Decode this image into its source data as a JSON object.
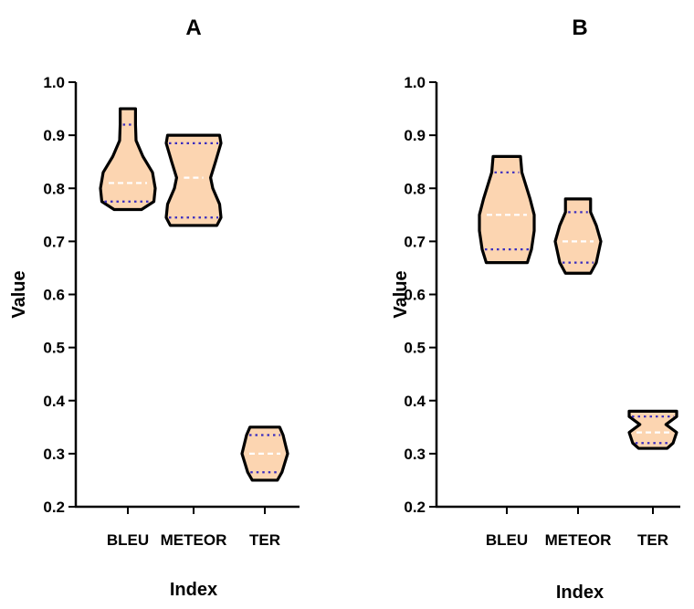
{
  "chart_data": [
    {
      "type": "violin",
      "panel_label": "A",
      "xlabel": "Index",
      "ylabel": "Value",
      "ylim": [
        0.2,
        1.0
      ],
      "yticks": [
        "0.2",
        "0.3",
        "0.4",
        "0.5",
        "0.6",
        "0.7",
        "0.8",
        "0.9",
        "1.0"
      ],
      "categories": [
        "BLEU",
        "METEOR",
        "TER"
      ],
      "violins": [
        {
          "category": "BLEU",
          "min": 0.76,
          "max": 0.95,
          "q1": 0.775,
          "median": 0.81,
          "q3": 0.92,
          "profile": [
            [
              0.76,
              0.5
            ],
            [
              0.775,
              0.95
            ],
            [
              0.8,
              1.0
            ],
            [
              0.83,
              0.9
            ],
            [
              0.86,
              0.55
            ],
            [
              0.89,
              0.3
            ],
            [
              0.92,
              0.28
            ],
            [
              0.95,
              0.28
            ]
          ]
        },
        {
          "category": "METEOR",
          "min": 0.73,
          "max": 0.9,
          "q1": 0.745,
          "median": 0.82,
          "q3": 0.885,
          "profile": [
            [
              0.73,
              0.85
            ],
            [
              0.745,
              1.0
            ],
            [
              0.77,
              0.95
            ],
            [
              0.8,
              0.7
            ],
            [
              0.82,
              0.62
            ],
            [
              0.85,
              0.8
            ],
            [
              0.885,
              1.0
            ],
            [
              0.9,
              0.95
            ]
          ]
        },
        {
          "category": "TER",
          "min": 0.25,
          "max": 0.35,
          "q1": 0.265,
          "median": 0.3,
          "q3": 0.335,
          "profile": [
            [
              0.25,
              0.55
            ],
            [
              0.265,
              0.75
            ],
            [
              0.3,
              1.0
            ],
            [
              0.335,
              0.8
            ],
            [
              0.35,
              0.65
            ]
          ]
        }
      ]
    },
    {
      "type": "violin",
      "panel_label": "B",
      "xlabel": "Index",
      "ylabel": "Value",
      "ylim": [
        0.2,
        1.0
      ],
      "yticks": [
        "0.2",
        "0.3",
        "0.4",
        "0.5",
        "0.6",
        "0.7",
        "0.8",
        "0.9",
        "1.0"
      ],
      "categories": [
        "BLEU",
        "METEOR",
        "TER"
      ],
      "violins": [
        {
          "category": "BLEU",
          "min": 0.66,
          "max": 0.86,
          "q1": 0.685,
          "median": 0.75,
          "q3": 0.83,
          "profile": [
            [
              0.66,
              0.75
            ],
            [
              0.685,
              0.9
            ],
            [
              0.72,
              1.0
            ],
            [
              0.75,
              1.0
            ],
            [
              0.78,
              0.85
            ],
            [
              0.83,
              0.55
            ],
            [
              0.86,
              0.5
            ]
          ]
        },
        {
          "category": "METEOR",
          "min": 0.64,
          "max": 0.78,
          "q1": 0.66,
          "median": 0.7,
          "q3": 0.755,
          "profile": [
            [
              0.64,
              0.55
            ],
            [
              0.66,
              0.8
            ],
            [
              0.7,
              1.0
            ],
            [
              0.73,
              0.8
            ],
            [
              0.755,
              0.55
            ],
            [
              0.78,
              0.55
            ]
          ]
        },
        {
          "category": "TER",
          "min": 0.31,
          "max": 0.38,
          "q1": 0.32,
          "median": 0.34,
          "q3": 0.37,
          "profile": [
            [
              0.31,
              0.6
            ],
            [
              0.32,
              0.85
            ],
            [
              0.34,
              1.0
            ],
            [
              0.355,
              0.55
            ],
            [
              0.37,
              1.0
            ],
            [
              0.38,
              1.0
            ]
          ]
        }
      ]
    }
  ]
}
